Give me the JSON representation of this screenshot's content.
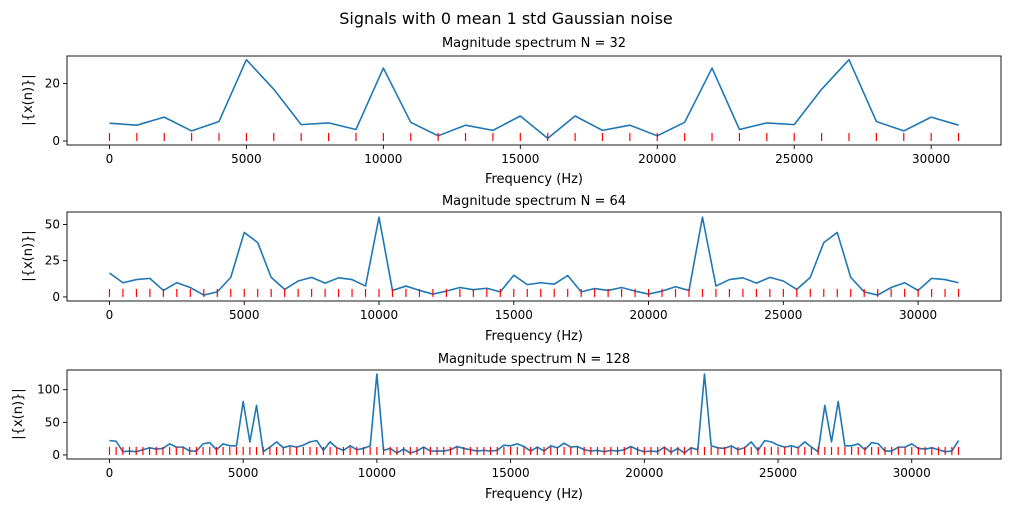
{
  "figure": {
    "suptitle": "Signals with 0 mean 1 std Gaussian noise"
  },
  "colors": {
    "line": "#1f77b4",
    "rug": "#ff0000"
  },
  "chart_data": [
    {
      "type": "line",
      "title": "Magnitude spectrum N = 32",
      "xlabel": "Frequency (Hz)",
      "ylabel": "|{x(n)}|",
      "xlim": [
        -1550,
        32550
      ],
      "ylim": [
        -1.4,
        29.6
      ],
      "xticks": [
        0,
        5000,
        10000,
        15000,
        20000,
        25000,
        30000
      ],
      "yticks": [
        0,
        20
      ],
      "rug": true,
      "x_step": 1000,
      "values": [
        6.2,
        5.5,
        8.3,
        3.5,
        6.8,
        28.3,
        18.0,
        5.7,
        6.3,
        4.0,
        25.4,
        6.5,
        1.8,
        5.5,
        3.7,
        8.7,
        0.9,
        8.7,
        3.7,
        5.5,
        1.8,
        6.5,
        25.4,
        4.0,
        6.3,
        5.7,
        18.0,
        28.3,
        6.8,
        3.5,
        8.3,
        5.5
      ]
    },
    {
      "type": "line",
      "title": "Magnitude spectrum N = 64",
      "xlabel": "Frequency (Hz)",
      "ylabel": "|{x(n)}|",
      "xlim": [
        -1575,
        33075
      ],
      "ylim": [
        -2.8,
        58.6
      ],
      "xticks": [
        0,
        5000,
        10000,
        15000,
        20000,
        25000,
        30000
      ],
      "yticks": [
        0,
        25,
        50
      ],
      "rug": true,
      "x_step": 500,
      "values": [
        16.5,
        9.8,
        12.0,
        12.8,
        4.5,
        9.8,
        6.5,
        1.3,
        3.5,
        13.5,
        44.5,
        37.5,
        13.5,
        5.2,
        11.0,
        13.5,
        9.5,
        13.2,
        12.0,
        7.5,
        55.0,
        4.5,
        7.5,
        4.5,
        2.0,
        4.0,
        6.5,
        5.0,
        6.0,
        3.5,
        15.0,
        8.5,
        9.8,
        8.8,
        14.8,
        3.5,
        5.8,
        4.5,
        6.5,
        4.0,
        2.0,
        4.0,
        7.0,
        4.5,
        55.0,
        7.5,
        12.0,
        13.2,
        9.5,
        13.5,
        11.0,
        5.2,
        13.5,
        37.5,
        44.5,
        13.5,
        3.5,
        1.3,
        6.5,
        9.8,
        4.5,
        12.8,
        12.0,
        9.8
      ]
    },
    {
      "type": "line",
      "title": "Magnitude spectrum N = 128",
      "xlabel": "Frequency (Hz)",
      "ylabel": "|{x(n)}|",
      "xlim": [
        -1587.5,
        33337.5
      ],
      "ylim": [
        -6.2,
        130.2
      ],
      "xticks": [
        0,
        5000,
        10000,
        15000,
        20000,
        25000,
        30000
      ],
      "yticks": [
        0,
        50,
        100
      ],
      "rug": true,
      "x_step": 250,
      "values": [
        22,
        21,
        5,
        6,
        5,
        8,
        11,
        9,
        10,
        17,
        12,
        12,
        6,
        6,
        17,
        19,
        8,
        17,
        14,
        14,
        82,
        20,
        76,
        5,
        12,
        20,
        11,
        14,
        12,
        15,
        20,
        22,
        7,
        20,
        11,
        7,
        14,
        8,
        10,
        14,
        124,
        7,
        10,
        3,
        9,
        3,
        6,
        12,
        6,
        6,
        6,
        8,
        13,
        10,
        8,
        6,
        7,
        6,
        7,
        15,
        14,
        17,
        13,
        6,
        12,
        6,
        14,
        11,
        18,
        12,
        13,
        8,
        6,
        7,
        5,
        7,
        6,
        8,
        13,
        8,
        5,
        6,
        5,
        12,
        4,
        10,
        3,
        11,
        8,
        124,
        14,
        11,
        10,
        14,
        8,
        11,
        20,
        7,
        22,
        20,
        15,
        12,
        14,
        11,
        20,
        12,
        5,
        76,
        20,
        82,
        14,
        14,
        17,
        8,
        19,
        17,
        6,
        6,
        12,
        12,
        17,
        10,
        9,
        11,
        8,
        5,
        6,
        22
      ]
    }
  ]
}
